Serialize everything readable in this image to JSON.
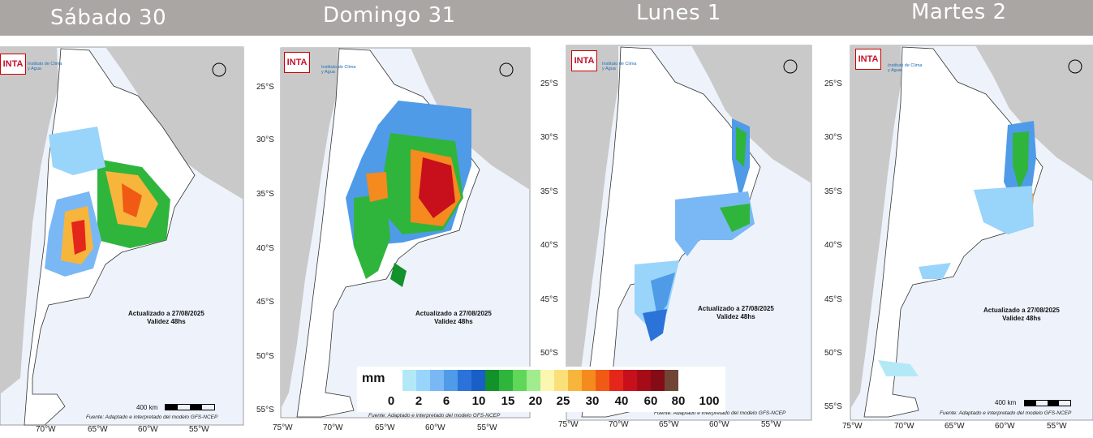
{
  "days": [
    {
      "title": "Sábado 30"
    },
    {
      "title": "Domingo 31"
    },
    {
      "title": "Lunes 1"
    },
    {
      "title": "Martes 2"
    }
  ],
  "map_common": {
    "logo": "INTA",
    "logo_sub": "Instituto de Clima y Agua",
    "updated": "Actualizado a 27/08/2025",
    "validity": "Validez 48hs",
    "source": "Fuente: Adaptado e interpretado del modelo GFS-NCEP",
    "scale": "400 km",
    "lat_labels": [
      "25°S",
      "30°S",
      "35°S",
      "40°S",
      "45°S",
      "50°S",
      "55°S"
    ],
    "lon_labels": [
      "75°W",
      "70°W",
      "65°W",
      "60°W",
      "55°W"
    ],
    "compass": "N"
  },
  "legend": {
    "unit": "mm",
    "ticks": [
      "0",
      "2",
      "6",
      "10",
      "15",
      "20",
      "25",
      "30",
      "40",
      "60",
      "80",
      "100"
    ],
    "colors": [
      "#b3e9f7",
      "#99d4fa",
      "#7ab8f5",
      "#4f9be8",
      "#2b73d8",
      "#1a5ec8",
      "#13912b",
      "#2fb53c",
      "#5fd85a",
      "#a0ec8e",
      "#fbf7b0",
      "#fbe07a",
      "#f8b53b",
      "#f58a1f",
      "#f05a15",
      "#e5261a",
      "#c8101c",
      "#a50c18",
      "#840c16",
      "#704536"
    ]
  }
}
